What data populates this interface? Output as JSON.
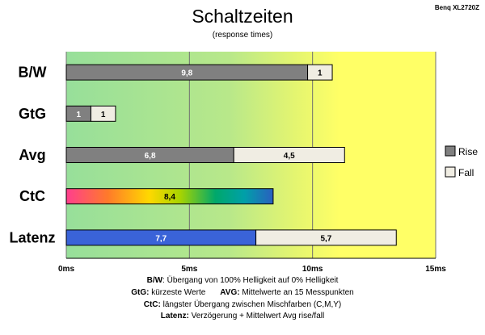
{
  "chart_data": {
    "type": "bar",
    "orientation": "horizontal",
    "stacked": true,
    "title": "Schaltzeiten",
    "subtitle": "(response times)",
    "brand": "Benq XL2720Z",
    "categories": [
      "B/W",
      "GtG",
      "Avg",
      "CtC",
      "Latenz"
    ],
    "series": [
      {
        "name": "Rise",
        "values": [
          9.8,
          1,
          6.8,
          8.4,
          7.7
        ]
      },
      {
        "name": "Fall",
        "values": [
          1,
          1,
          4.5,
          null,
          5.7
        ]
      }
    ],
    "value_labels": [
      [
        "9,8",
        "1"
      ],
      [
        "1",
        "1"
      ],
      [
        "6,8",
        "4,5"
      ],
      [
        "8,4",
        ""
      ],
      [
        "7,7",
        "5,7"
      ]
    ],
    "xlim": [
      0,
      15
    ],
    "xticks": [
      0,
      5,
      10,
      15
    ],
    "xtick_labels": [
      "0ms",
      "5ms",
      "10ms",
      "15ms"
    ],
    "grid": true,
    "legend_position": "right",
    "colors": {
      "rise": "#808080",
      "fall": "#f0ede3",
      "latenz_rise": "#3a63d8",
      "bg_green": "#97df9a",
      "bg_yellow": "#ffff66"
    }
  },
  "footnotes": {
    "bw_key": "B/W",
    "bw_text": ":  Übergang von 100% Helligkeit auf 0% Helligkeit",
    "gtg_key": "GtG:",
    "gtg_text": " kürzeste  Werte",
    "avg_key": "AVG:",
    "avg_text": " Mittelwerte an 15 Messpunkten",
    "ctc_key": "CtC:",
    "ctc_text": " längster Übergang zwischen Mischfarben (C,M,Y)",
    "lat_key": "Latenz:",
    "lat_text": " Verzögerung  + Mittelwert Avg rise/fall"
  }
}
